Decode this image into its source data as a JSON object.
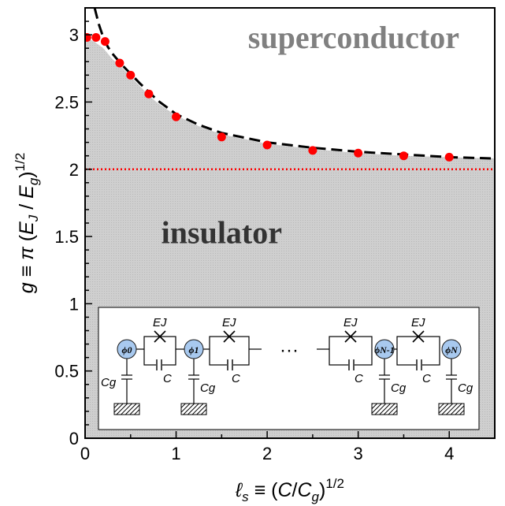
{
  "chart_data": {
    "type": "scatter",
    "xlabel": "ℓs ≡ (C/Cg)1/2",
    "ylabel": "g ≡ π (EJ / Eg)1/2",
    "xlim": [
      0,
      4.5
    ],
    "ylim": [
      0,
      3.2
    ],
    "x_ticks": [
      "0",
      "1",
      "2",
      "3",
      "4"
    ],
    "y_ticks": [
      "0",
      "0.5",
      "1",
      "1.5",
      "2",
      "2.5",
      "3"
    ],
    "grid": false,
    "legend": "none",
    "series": [
      {
        "kind": "points",
        "color": "#ff0000",
        "x": [
          0.02,
          0.12,
          0.22,
          0.38,
          0.5,
          0.7,
          1.0,
          1.5,
          2.0,
          2.5,
          3.0,
          3.5,
          4.0
        ],
        "y": [
          2.98,
          2.98,
          2.95,
          2.79,
          2.7,
          2.56,
          2.39,
          2.24,
          2.18,
          2.14,
          2.12,
          2.1,
          2.09
        ]
      },
      {
        "kind": "dashed-line",
        "color": "#000000",
        "x": [
          0.105,
          0.15,
          0.2,
          0.25,
          0.3,
          0.4,
          0.5,
          0.6,
          0.8,
          1.0,
          1.25,
          1.5,
          2.0,
          2.5,
          3.0,
          3.5,
          4.0,
          4.5
        ],
        "y": [
          3.2,
          3.08,
          2.98,
          2.91,
          2.86,
          2.78,
          2.71,
          2.64,
          2.51,
          2.41,
          2.33,
          2.27,
          2.2,
          2.16,
          2.13,
          2.11,
          2.09,
          2.08
        ]
      },
      {
        "kind": "dotted-line",
        "color": "#ff0000",
        "x": [
          0,
          4.5
        ],
        "y": [
          2.0,
          2.0
        ]
      },
      {
        "kind": "shaded-region",
        "color": "#cccccc",
        "x": [
          0.0,
          0.1,
          0.2,
          0.3,
          0.4,
          0.5,
          0.6,
          0.7,
          0.8,
          1.0,
          1.25,
          1.5,
          2.0,
          2.5,
          3.0,
          3.5,
          4.0,
          4.5
        ],
        "y": [
          2.98,
          2.95,
          2.9,
          2.82,
          2.76,
          2.69,
          2.62,
          2.55,
          2.49,
          2.4,
          2.32,
          2.26,
          2.19,
          2.15,
          2.12,
          2.1,
          2.09,
          2.08
        ]
      }
    ],
    "annotations": [
      {
        "text": "superconductor",
        "x": 2.95,
        "y": 2.9,
        "color": "#808080"
      },
      {
        "text": "insulator",
        "x": 1.5,
        "y": 1.45,
        "color": "#333333"
      }
    ]
  },
  "inset": {
    "nodes": [
      "ϕ0",
      "ϕ1",
      "ϕN-1",
      "ϕN"
    ],
    "junction_label": "EJ",
    "capacitor_label": "C",
    "ground_cap_label": "Cg",
    "ellipsis": "···"
  },
  "colors": {
    "node_fill": "#a8c9ef",
    "shade": "#cccccc"
  }
}
